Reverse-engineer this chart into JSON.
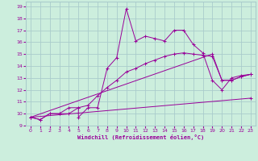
{
  "xlabel": "Windchill (Refroidissement éolien,°C)",
  "background_color": "#cceedd",
  "grid_color": "#aacccc",
  "line_color": "#990099",
  "xlim": [
    -0.5,
    23.5
  ],
  "ylim": [
    9,
    19.4
  ],
  "xticks": [
    0,
    1,
    2,
    3,
    4,
    5,
    6,
    7,
    8,
    9,
    10,
    11,
    12,
    13,
    14,
    15,
    16,
    17,
    18,
    19,
    20,
    21,
    22,
    23
  ],
  "yticks": [
    9,
    10,
    11,
    12,
    13,
    14,
    15,
    16,
    17,
    18,
    19
  ],
  "line1_x": [
    0,
    1,
    2,
    3,
    4,
    5,
    5,
    6,
    7,
    8,
    9,
    10,
    11,
    12,
    13,
    14,
    15,
    16,
    17,
    18,
    19,
    20,
    21,
    22,
    23
  ],
  "line1_y": [
    9.7,
    9.5,
    10.0,
    10.0,
    10.0,
    10.5,
    9.7,
    10.5,
    10.5,
    13.8,
    14.7,
    18.8,
    16.1,
    16.5,
    16.3,
    16.1,
    17.0,
    17.0,
    15.8,
    15.1,
    12.8,
    12.0,
    13.0,
    13.2,
    13.3
  ],
  "line2_x": [
    0,
    1,
    2,
    3,
    4,
    5,
    6,
    7,
    8,
    9,
    10,
    11,
    12,
    13,
    14,
    15,
    16,
    17,
    18,
    19,
    20,
    21,
    22,
    23
  ],
  "line2_y": [
    9.7,
    9.5,
    10.0,
    10.0,
    10.5,
    10.5,
    10.7,
    11.5,
    12.2,
    12.8,
    13.5,
    13.8,
    14.2,
    14.5,
    14.8,
    15.0,
    15.1,
    15.0,
    14.9,
    14.8,
    12.8,
    12.8,
    13.1,
    13.3
  ],
  "line3_x": [
    0,
    19,
    20,
    21,
    22,
    23
  ],
  "line3_y": [
    9.7,
    15.0,
    12.8,
    12.8,
    13.1,
    13.3
  ],
  "line4_x": [
    0,
    23
  ],
  "line4_y": [
    9.7,
    11.3
  ]
}
